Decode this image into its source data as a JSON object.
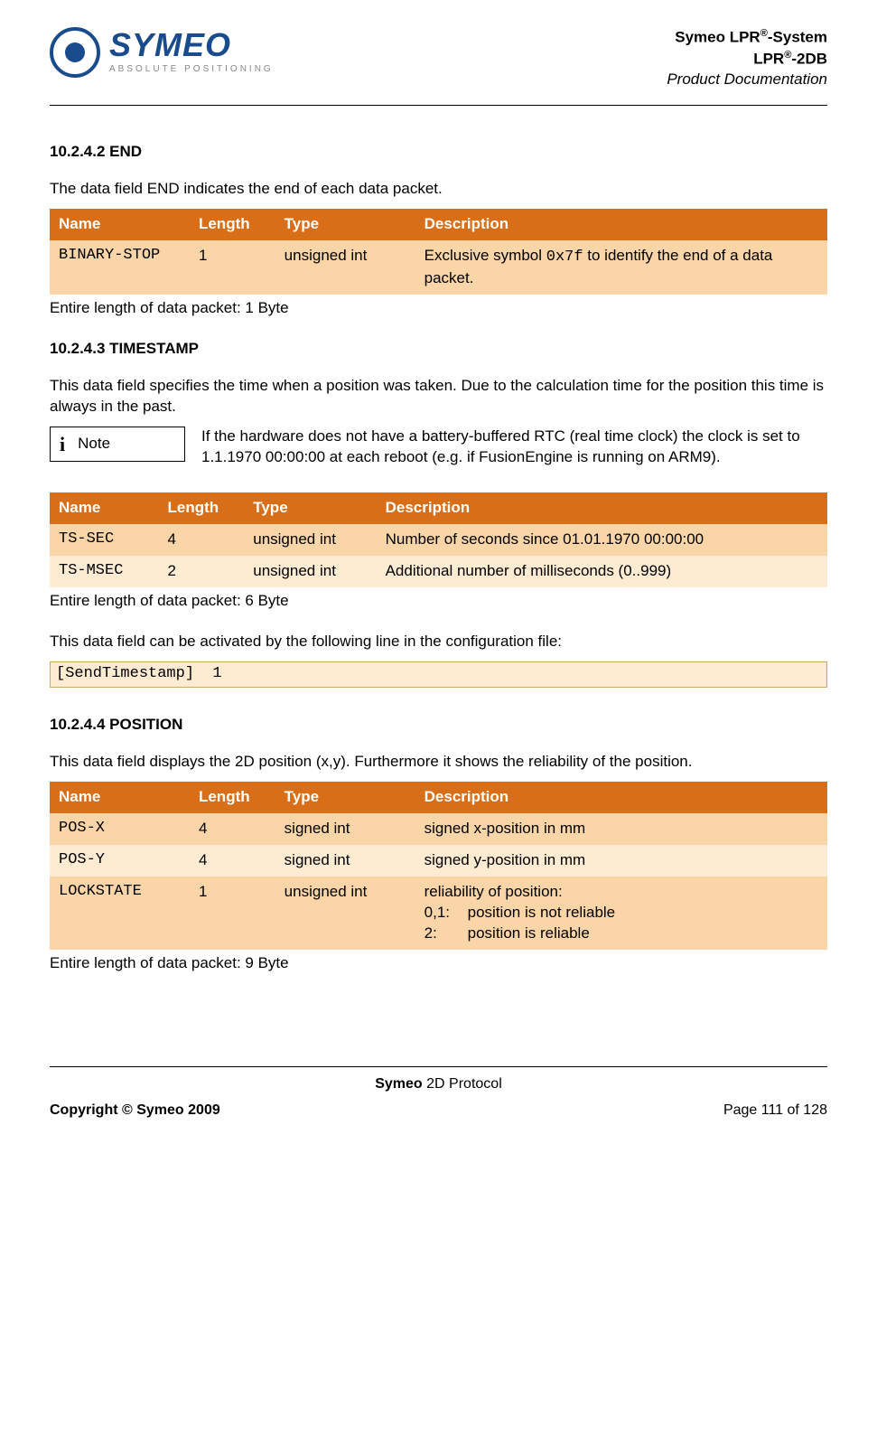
{
  "header": {
    "logo_name": "SYMEO",
    "logo_tagline": "ABSOLUTE POSITIONING",
    "right_line1_a": "Symeo LPR",
    "right_line1_b": "-System",
    "right_line2_a": "LPR",
    "right_line2_b": "-2DB",
    "right_line3": "Product Documentation",
    "sup": "®"
  },
  "colors": {
    "table_header_bg": "#d86f18",
    "table_header_fg": "#ffffff",
    "row_odd_bg": "#f9d5a8",
    "row_even_bg": "#fdebd2",
    "logo_color": "#1a4b8c"
  },
  "section1": {
    "heading": "10.2.4.2 END",
    "intro": "The data field END indicates the end of each data packet.",
    "headers": {
      "name": "Name",
      "length": "Length",
      "type": "Type",
      "desc": "Description"
    },
    "rows": [
      {
        "name": "BINARY-STOP",
        "length": "1",
        "type": "unsigned int",
        "desc_pre": "Exclusive symbol ",
        "desc_code": "0x7f",
        "desc_post": " to identify the end of a data packet."
      }
    ],
    "caption": "Entire length of data packet: 1 Byte"
  },
  "section2": {
    "heading": "10.2.4.3 TIMESTAMP",
    "intro": "This data field specifies the time when a position was taken. Due to the calculation time for the position this time is always in the past.",
    "note_label": "Note",
    "note_text": "If the hardware does not have a battery-buffered RTC (real time clock) the clock is set to 1.1.1970 00:00:00 at each reboot (e.g. if FusionEngine is running on ARM9).",
    "headers": {
      "name": "Name",
      "length": "Length",
      "type": "Type",
      "desc": "Description"
    },
    "rows": [
      {
        "name": "TS-SEC",
        "length": "4",
        "type": "unsigned int",
        "desc": "Number of seconds since 01.01.1970 00:00:00"
      },
      {
        "name": "TS-MSEC",
        "length": "2",
        "type": "unsigned int",
        "desc": "Additional number of milliseconds (0..999)"
      }
    ],
    "caption": "Entire length of data packet: 6 Byte",
    "after": "This data field can be activated by the following line in the configuration file:",
    "code": "[SendTimestamp]  1"
  },
  "section3": {
    "heading": "10.2.4.4 POSITION",
    "intro": "This data field displays the 2D position (x,y). Furthermore it shows the reliability of the position.",
    "headers": {
      "name": "Name",
      "length": "Length",
      "type": "Type",
      "desc": "Description"
    },
    "rows": [
      {
        "name": "POS-X",
        "length": "4",
        "type": "signed int",
        "desc": "signed x-position in mm"
      },
      {
        "name": "POS-Y",
        "length": "4",
        "type": "signed int",
        "desc": "signed y-position in mm"
      },
      {
        "name": "LOCKSTATE",
        "length": "1",
        "type": "unsigned int",
        "desc_lines": [
          "reliability of position:",
          "0,1:|position is not reliable",
          "2:|position is reliable"
        ]
      }
    ],
    "caption": "Entire length of data packet: 9 Byte"
  },
  "footer": {
    "center_bold": "Symeo",
    "center_rest": " 2D Protocol",
    "copyright": "Copyright © Symeo 2009",
    "page": "Page 111 of 128"
  }
}
